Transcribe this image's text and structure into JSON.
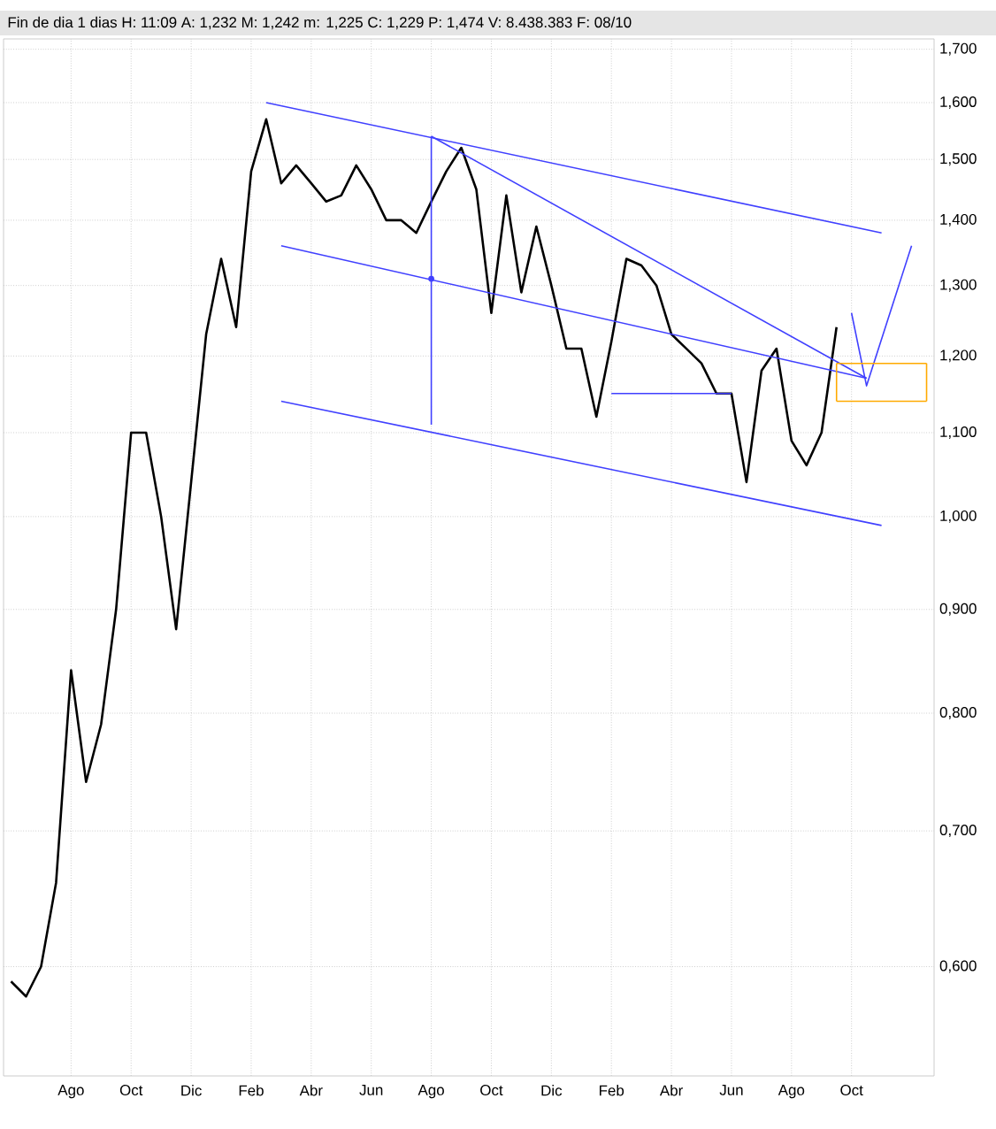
{
  "chart_data": {
    "type": "line",
    "title": "Fin de dia 1 dias H: 11:09 A: 1,232 M: 1,242 m: 1,225 C: 1,229 P: 1,474 V: 8.438.383 F: 08/10",
    "log": "y",
    "grid": true,
    "marker": "none",
    "categories": [
      null,
      null,
      null,
      null,
      "Ago",
      null,
      null,
      null,
      "Oct",
      null,
      null,
      null,
      "Dic",
      null,
      null,
      null,
      "Feb",
      null,
      null,
      null,
      "Abr",
      null,
      null,
      null,
      "Jun",
      null,
      null,
      null,
      "Ago",
      null,
      null,
      null,
      "Oct",
      null,
      null,
      null,
      "Dic",
      null,
      null,
      null,
      "Feb",
      null,
      null,
      null,
      "Abr",
      null,
      null,
      null,
      "Jun",
      null,
      null,
      null,
      "Ago",
      null,
      null,
      null,
      "Oct",
      null,
      null,
      null,
      null,
      null
    ],
    "ylim": [
      0.53,
      1.72
    ],
    "yticks": [
      {
        "value": 0.6,
        "label": "0,600"
      },
      {
        "value": 0.7,
        "label": "0,700"
      },
      {
        "value": 0.8,
        "label": "0,800"
      },
      {
        "value": 0.9,
        "label": "0,900"
      },
      {
        "value": 1.0,
        "label": "1,000"
      },
      {
        "value": 1.1,
        "label": "1,100"
      },
      {
        "value": 1.2,
        "label": "1,200"
      },
      {
        "value": 1.3,
        "label": "1,300"
      },
      {
        "value": 1.4,
        "label": "1,400"
      },
      {
        "value": 1.5,
        "label": "1,500"
      },
      {
        "value": 1.6,
        "label": "1,600"
      },
      {
        "value": 1.7,
        "label": "1,700"
      }
    ],
    "series": [
      {
        "color": "#000000",
        "values": [
          0.59,
          0.58,
          0.6,
          0.66,
          0.84,
          0.74,
          0.79,
          0.9,
          1.1,
          1.1,
          1.0,
          0.88,
          1.04,
          1.23,
          1.34,
          1.24,
          1.48,
          1.57,
          1.46,
          1.49,
          1.46,
          1.43,
          1.44,
          1.49,
          1.45,
          1.4,
          1.4,
          1.38,
          1.43,
          1.48,
          1.52,
          1.45,
          1.26,
          1.44,
          1.29,
          1.39,
          1.3,
          1.21,
          1.21,
          1.12,
          1.22,
          1.34,
          1.33,
          1.3,
          1.23,
          1.21,
          1.19,
          1.15,
          1.15,
          1.04,
          1.18,
          1.21,
          1.09,
          1.06,
          1.1,
          1.24,
          null,
          null,
          null,
          null,
          null,
          null
        ]
      },
      {
        "color": "#4040ff",
        "values": [
          null,
          null,
          null,
          null,
          null,
          null,
          null,
          null,
          null,
          null,
          null,
          null,
          null,
          null,
          null,
          null,
          null,
          1.6,
          null,
          null,
          null,
          null,
          null,
          null,
          null,
          null,
          null,
          null,
          null,
          null,
          null,
          null,
          null,
          null,
          null,
          null,
          null,
          null,
          null,
          null,
          null,
          null,
          null,
          null,
          null,
          null,
          null,
          null,
          null,
          null,
          null,
          null,
          null,
          null,
          null,
          null,
          null,
          null,
          1.38,
          null,
          null,
          null
        ]
      },
      {
        "color": "#4040ff",
        "values": [
          null,
          null,
          null,
          null,
          null,
          null,
          null,
          null,
          null,
          null,
          null,
          null,
          null,
          null,
          null,
          null,
          null,
          null,
          1.36,
          null,
          null,
          null,
          null,
          null,
          null,
          null,
          null,
          null,
          null,
          null,
          null,
          null,
          null,
          null,
          null,
          null,
          null,
          null,
          null,
          null,
          null,
          null,
          null,
          null,
          null,
          null,
          null,
          null,
          null,
          null,
          null,
          null,
          null,
          null,
          null,
          null,
          null,
          1.17,
          null,
          null,
          null,
          null
        ]
      },
      {
        "color": "#4040ff",
        "values": [
          null,
          null,
          null,
          null,
          null,
          null,
          null,
          null,
          null,
          null,
          null,
          null,
          null,
          null,
          null,
          null,
          null,
          null,
          1.14,
          null,
          null,
          null,
          null,
          null,
          null,
          null,
          null,
          null,
          null,
          null,
          null,
          null,
          null,
          null,
          null,
          null,
          null,
          null,
          null,
          null,
          null,
          null,
          null,
          null,
          null,
          null,
          null,
          null,
          null,
          null,
          null,
          null,
          null,
          null,
          null,
          null,
          null,
          null,
          0.99,
          null,
          null,
          null
        ]
      },
      {
        "color": "#4040ff",
        "values": [
          null,
          null,
          null,
          null,
          null,
          null,
          null,
          null,
          null,
          null,
          null,
          null,
          null,
          null,
          null,
          null,
          null,
          null,
          null,
          null,
          null,
          null,
          null,
          null,
          null,
          null,
          null,
          null,
          1.54,
          null,
          null,
          null,
          null,
          null,
          null,
          null,
          null,
          null,
          null,
          null,
          null,
          null,
          null,
          null,
          null,
          null,
          null,
          null,
          null,
          null,
          null,
          null,
          null,
          null,
          null,
          null,
          null,
          1.17,
          null,
          null,
          null,
          null
        ]
      },
      {
        "color": "#4040ff",
        "values": [
          null,
          null,
          null,
          null,
          null,
          null,
          null,
          null,
          null,
          null,
          null,
          null,
          null,
          null,
          null,
          null,
          null,
          null,
          null,
          null,
          null,
          null,
          null,
          null,
          null,
          null,
          null,
          null,
          null,
          null,
          null,
          null,
          null,
          null,
          null,
          null,
          null,
          null,
          null,
          null,
          1.15,
          null,
          null,
          null,
          null,
          null,
          null,
          null,
          1.15,
          null,
          null,
          null,
          null,
          null,
          null,
          null,
          null,
          null,
          null,
          null,
          null,
          null
        ]
      },
      {
        "type": "scatter",
        "marker": "circle",
        "color": "#4040ff",
        "values": [
          null,
          null,
          null,
          null,
          null,
          null,
          null,
          null,
          null,
          null,
          null,
          null,
          null,
          null,
          null,
          null,
          null,
          null,
          null,
          null,
          null,
          null,
          null,
          null,
          null,
          null,
          null,
          null,
          1.31,
          null,
          null,
          null,
          null,
          null,
          null,
          null,
          null,
          null,
          null,
          null,
          null,
          null,
          null,
          null,
          null,
          null,
          null,
          null,
          null,
          null,
          null,
          null,
          null,
          null,
          null,
          null,
          null,
          null,
          null,
          null,
          null,
          null
        ],
        "errors": [
          null,
          null,
          null,
          null,
          null,
          null,
          null,
          null,
          null,
          null,
          null,
          null,
          null,
          null,
          null,
          null,
          null,
          null,
          null,
          null,
          null,
          null,
          null,
          null,
          null,
          null,
          null,
          null,
          [
            1.11,
            1.54
          ],
          null,
          null,
          null,
          null,
          null,
          null,
          null,
          null,
          null,
          null,
          null,
          null,
          null,
          null,
          null,
          null,
          null,
          null,
          null,
          null,
          null,
          null,
          null,
          null,
          null,
          null,
          null,
          null,
          null,
          null,
          null,
          null,
          null
        ]
      },
      {
        "color": "#4040ff",
        "values": [
          null,
          null,
          null,
          null,
          null,
          null,
          null,
          null,
          null,
          null,
          null,
          null,
          null,
          null,
          null,
          null,
          null,
          null,
          null,
          null,
          null,
          null,
          null,
          null,
          null,
          null,
          null,
          null,
          null,
          null,
          null,
          null,
          null,
          null,
          null,
          null,
          null,
          null,
          null,
          null,
          null,
          null,
          null,
          null,
          null,
          null,
          null,
          null,
          null,
          null,
          null,
          null,
          null,
          null,
          null,
          null,
          1.26,
          1.16,
          null,
          null,
          1.36,
          null
        ]
      },
      {
        "color": "#ffaa00",
        "values": [
          null,
          null,
          null,
          null,
          null,
          null,
          null,
          null,
          null,
          null,
          null,
          null,
          null,
          null,
          null,
          null,
          null,
          null,
          null,
          null,
          null,
          null,
          null,
          null,
          null,
          null,
          null,
          null,
          null,
          null,
          null,
          null,
          null,
          null,
          null,
          null,
          null,
          null,
          null,
          null,
          null,
          null,
          null,
          null,
          null,
          null,
          null,
          null,
          null,
          null,
          null,
          null,
          null,
          null,
          null,
          1.19,
          null,
          null,
          null,
          null,
          null,
          1.19
        ],
        "errors": [
          null,
          null,
          null,
          null,
          null,
          null,
          null,
          null,
          null,
          null,
          null,
          null,
          null,
          null,
          null,
          null,
          null,
          null,
          null,
          null,
          null,
          null,
          null,
          null,
          null,
          null,
          null,
          null,
          null,
          null,
          null,
          null,
          null,
          null,
          null,
          null,
          null,
          null,
          null,
          null,
          null,
          null,
          null,
          null,
          null,
          null,
          null,
          null,
          null,
          null,
          null,
          null,
          null,
          null,
          null,
          [
            1.14,
            1.19
          ],
          null,
          null,
          null,
          null,
          null,
          [
            1.14,
            1.19
          ]
        ]
      },
      {
        "color": "#ffaa00",
        "values": [
          null,
          null,
          null,
          null,
          null,
          null,
          null,
          null,
          null,
          null,
          null,
          null,
          null,
          null,
          null,
          null,
          null,
          null,
          null,
          null,
          null,
          null,
          null,
          null,
          null,
          null,
          null,
          null,
          null,
          null,
          null,
          null,
          null,
          null,
          null,
          null,
          null,
          null,
          null,
          null,
          null,
          null,
          null,
          null,
          null,
          null,
          null,
          null,
          null,
          null,
          null,
          null,
          null,
          null,
          null,
          1.14,
          null,
          null,
          null,
          null,
          null,
          1.14
        ]
      }
    ]
  }
}
